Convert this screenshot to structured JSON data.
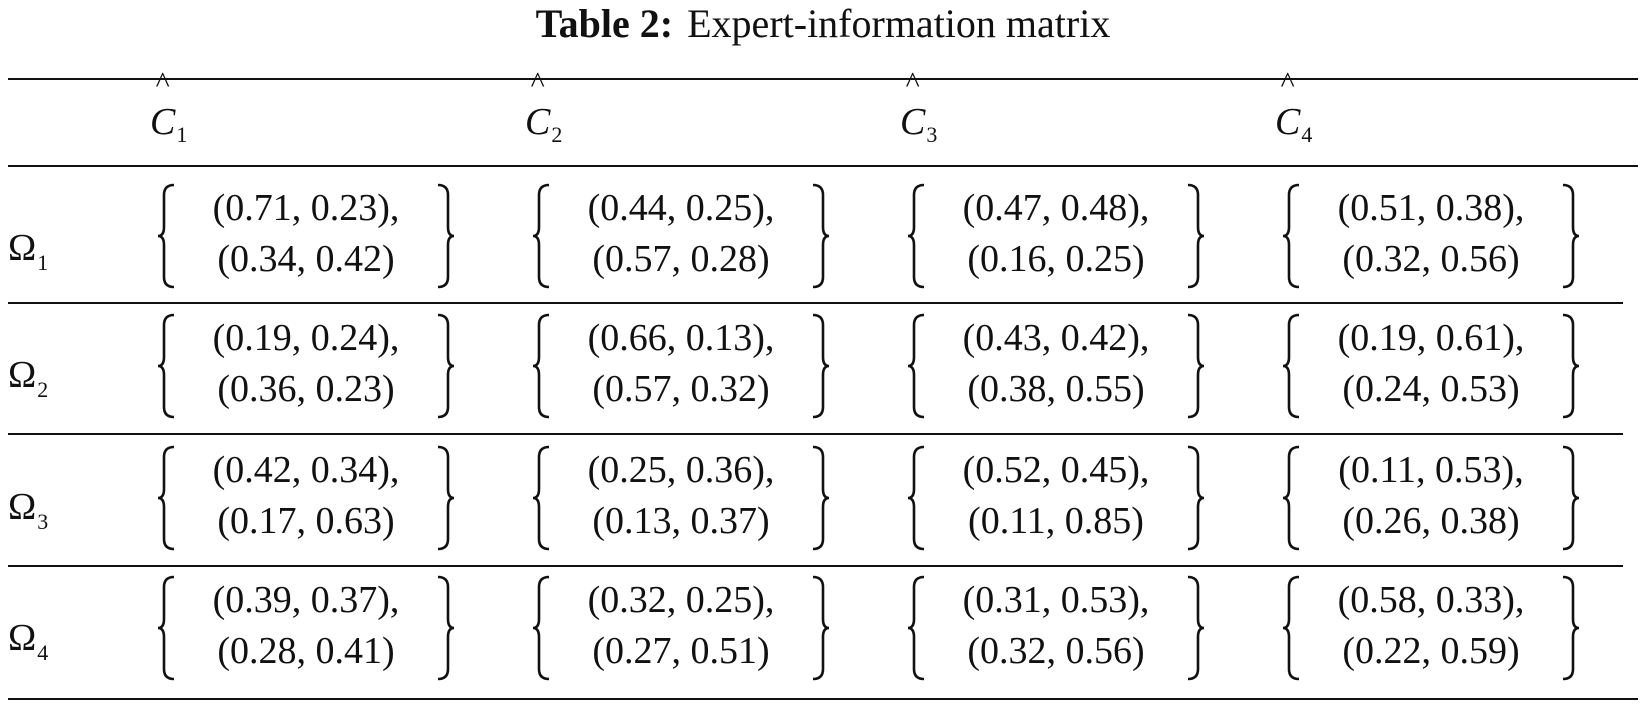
{
  "caption": {
    "label": "Table 2:",
    "title": "Expert-information matrix"
  },
  "columns": [
    {
      "letter": "C",
      "hat": "^",
      "sub": "1"
    },
    {
      "letter": "C",
      "hat": "^",
      "sub": "2"
    },
    {
      "letter": "C",
      "hat": "^",
      "sub": "3"
    },
    {
      "letter": "C",
      "hat": "^",
      "sub": "4"
    }
  ],
  "rows": [
    {
      "symbol": "Ω",
      "sub": "1",
      "cells": [
        [
          "(0.71, 0.23),",
          "(0.34, 0.42)"
        ],
        [
          "(0.44, 0.25),",
          "(0.57, 0.28)"
        ],
        [
          "(0.47, 0.48),",
          "(0.16, 0.25)"
        ],
        [
          "(0.51, 0.38),",
          "(0.32, 0.56)"
        ]
      ]
    },
    {
      "symbol": "Ω",
      "sub": "2",
      "cells": [
        [
          "(0.19, 0.24),",
          "(0.36, 0.23)"
        ],
        [
          "(0.66, 0.13),",
          "(0.57, 0.32)"
        ],
        [
          "(0.43, 0.42),",
          "(0.38, 0.55)"
        ],
        [
          "(0.19, 0.61),",
          "(0.24, 0.53)"
        ]
      ]
    },
    {
      "symbol": "Ω",
      "sub": "3",
      "cells": [
        [
          "(0.42, 0.34),",
          "(0.17, 0.63)"
        ],
        [
          "(0.25, 0.36),",
          "(0.13, 0.37)"
        ],
        [
          "(0.52, 0.45),",
          "(0.11, 0.85)"
        ],
        [
          "(0.11, 0.53),",
          "(0.26, 0.38)"
        ]
      ]
    },
    {
      "symbol": "Ω",
      "sub": "4",
      "cells": [
        [
          "(0.39, 0.37),",
          "(0.28, 0.41)"
        ],
        [
          "(0.32, 0.25),",
          "(0.27, 0.51)"
        ],
        [
          "(0.31, 0.53),",
          "(0.32, 0.56)"
        ],
        [
          "(0.58, 0.33),",
          "(0.22, 0.59)"
        ]
      ]
    }
  ]
}
